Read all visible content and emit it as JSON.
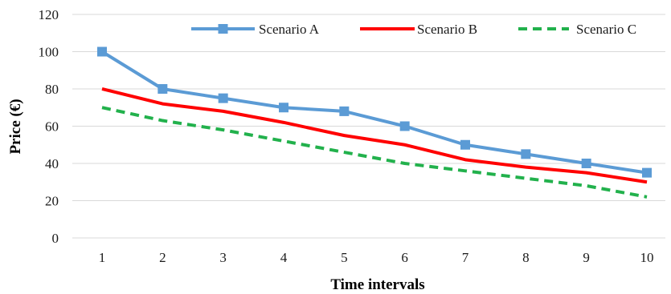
{
  "chart_data": {
    "type": "line",
    "title": "",
    "xlabel": "Time intervals",
    "ylabel": "Price (€)",
    "x": [
      1,
      2,
      3,
      4,
      5,
      6,
      7,
      8,
      9,
      10
    ],
    "x_tick_labels": [
      "1",
      "2",
      "3",
      "4",
      "5",
      "6",
      "7",
      "8",
      "9",
      "10"
    ],
    "ylim": [
      0,
      120
    ],
    "y_ticks": [
      0,
      20,
      40,
      60,
      80,
      100,
      120
    ],
    "y_tick_labels": [
      "0",
      "20",
      "40",
      "60",
      "80",
      "100",
      "120"
    ],
    "grid": "horizontal",
    "legend_position": "top-right",
    "series": [
      {
        "name": "Scenario A",
        "values": [
          100,
          80,
          75,
          70,
          68,
          60,
          50,
          45,
          40,
          35
        ],
        "color": "#5b9bd5",
        "line_style": "solid",
        "marker": "square"
      },
      {
        "name": "Scenario B",
        "values": [
          80,
          72,
          68,
          62,
          55,
          50,
          42,
          38,
          35,
          30
        ],
        "color": "#ff0000",
        "line_style": "solid",
        "marker": "none"
      },
      {
        "name": "Scenario C",
        "values": [
          70,
          63,
          58,
          52,
          46,
          40,
          36,
          32,
          28,
          22
        ],
        "color": "#22b14c",
        "line_style": "dashed",
        "marker": "none"
      }
    ]
  }
}
